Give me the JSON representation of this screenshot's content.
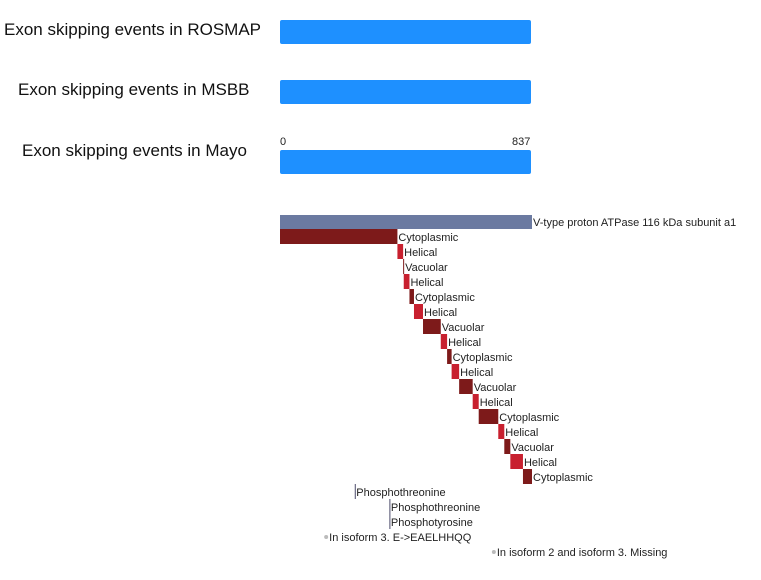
{
  "tracks": [
    {
      "label": "Exon skipping events in ROSMAP",
      "color": "#1e90ff"
    },
    {
      "label": "Exon skipping events in MSBB",
      "color": "#1e90ff"
    },
    {
      "label": "Exon skipping events in Mayo",
      "color": "#1e90ff"
    }
  ],
  "axis": {
    "min_label": "0",
    "max_label": "837"
  },
  "chart_data": {
    "type": "bar",
    "title": "",
    "x_range": [
      0,
      837
    ],
    "protein": {
      "label": "V-type proton ATPase 116 kDa subunit a1",
      "start": 1,
      "end": 837,
      "color": "#6b7aa1"
    },
    "topology": [
      {
        "label": "Cytoplasmic",
        "start": 1,
        "end": 390,
        "color": "#7d1a1a"
      },
      {
        "label": "Helical",
        "start": 391,
        "end": 409,
        "color": "#c8202f"
      },
      {
        "label": "Vacuolar",
        "start": 410,
        "end": 411,
        "color": "#7d1a1a"
      },
      {
        "label": "Helical",
        "start": 412,
        "end": 430,
        "color": "#c8202f"
      },
      {
        "label": "Cytoplasmic",
        "start": 431,
        "end": 445,
        "color": "#7d1a1a"
      },
      {
        "label": "Helical",
        "start": 446,
        "end": 475,
        "color": "#c8202f"
      },
      {
        "label": "Vacuolar",
        "start": 476,
        "end": 534,
        "color": "#7d1a1a"
      },
      {
        "label": "Helical",
        "start": 535,
        "end": 555,
        "color": "#c8202f"
      },
      {
        "label": "Cytoplasmic",
        "start": 556,
        "end": 570,
        "color": "#7d1a1a"
      },
      {
        "label": "Helical",
        "start": 571,
        "end": 595,
        "color": "#c8202f"
      },
      {
        "label": "Vacuolar",
        "start": 596,
        "end": 640,
        "color": "#7d1a1a"
      },
      {
        "label": "Helical",
        "start": 641,
        "end": 660,
        "color": "#c8202f"
      },
      {
        "label": "Cytoplasmic",
        "start": 661,
        "end": 725,
        "color": "#7d1a1a"
      },
      {
        "label": "Helical",
        "start": 726,
        "end": 745,
        "color": "#c8202f"
      },
      {
        "label": "Vacuolar",
        "start": 746,
        "end": 765,
        "color": "#7d1a1a"
      },
      {
        "label": "Helical",
        "start": 766,
        "end": 807,
        "color": "#c8202f"
      },
      {
        "label": "Cytoplasmic",
        "start": 808,
        "end": 837,
        "color": "#7d1a1a"
      }
    ],
    "features": [
      {
        "label": "Phosphothreonine",
        "pos": 250,
        "color": "#4b4b6b",
        "marker": "line"
      },
      {
        "label": "Phosphothreonine",
        "pos": 365,
        "color": "#4b4b6b",
        "marker": "line"
      },
      {
        "label": "Phosphotyrosine",
        "pos": 365,
        "color": "#4b4b6b",
        "marker": "line"
      },
      {
        "label": "In isoform 3. E->EAELHHQQ",
        "pos": 150,
        "color": "#bbbbbb",
        "marker": "dot"
      },
      {
        "label": "In isoform 2 and isoform 3. Missing",
        "pos": 707,
        "color": "#bbbbbb",
        "marker": "dot"
      }
    ]
  }
}
